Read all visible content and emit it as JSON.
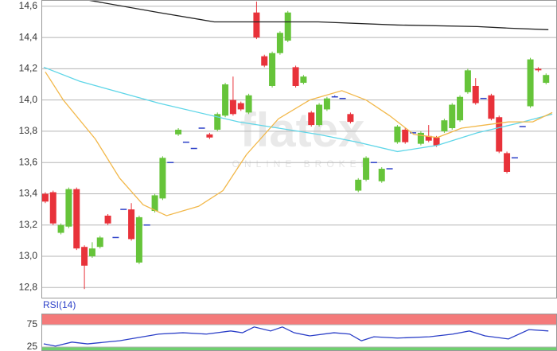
{
  "chart_data": [
    {
      "type": "candlestick",
      "watermark": "flatex",
      "watermark_sub": "ONLINE BROKER",
      "x": [
        0,
        1,
        2,
        3,
        4,
        5,
        6,
        7,
        8,
        9,
        10,
        11,
        12,
        13,
        14,
        15,
        16,
        17,
        18,
        19,
        20,
        21,
        22,
        23,
        24,
        25,
        26,
        27,
        28,
        29,
        30,
        31,
        32,
        33,
        34,
        35,
        36,
        37,
        38,
        39,
        40,
        41,
        42,
        43,
        44,
        45,
        46,
        47,
        48,
        49,
        50,
        51,
        52,
        53,
        54,
        55,
        56,
        57,
        58,
        59,
        60,
        61,
        62,
        63,
        64
      ],
      "open": [
        13.4,
        13.41,
        13.15,
        13.19,
        13.43,
        13.06,
        13.0,
        13.06,
        13.26,
        13.12,
        13.3,
        13.3,
        12.96,
        13.2,
        13.29,
        13.37,
        13.6,
        13.78,
        13.73,
        13.69,
        13.82,
        13.78,
        13.81,
        13.9,
        14.0,
        13.98,
        13.92,
        14.56,
        14.28,
        14.09,
        14.3,
        14.38,
        14.21,
        14.11,
        13.92,
        13.84,
        13.94,
        14.02,
        14.01,
        13.91,
        13.42,
        13.49,
        13.6,
        13.48,
        13.56,
        13.73,
        13.81,
        13.79,
        13.72,
        13.77,
        13.76,
        13.8,
        13.82,
        13.87,
        14.05,
        14.09,
        14.01,
        14.03,
        13.89,
        13.66,
        13.63,
        13.83,
        13.96,
        14.2,
        14.11
      ],
      "high": [
        13.41,
        13.42,
        13.21,
        13.44,
        13.44,
        13.07,
        13.09,
        13.13,
        13.27,
        13.12,
        13.3,
        13.34,
        13.26,
        13.2,
        13.4,
        13.64,
        13.6,
        13.82,
        13.73,
        13.69,
        13.82,
        13.79,
        13.92,
        14.11,
        14.15,
        13.99,
        14.04,
        14.63,
        14.29,
        14.31,
        14.44,
        14.57,
        14.22,
        14.16,
        13.93,
        13.98,
        14.02,
        14.03,
        14.01,
        13.92,
        13.5,
        13.64,
        13.6,
        13.57,
        13.56,
        13.84,
        13.82,
        13.79,
        13.8,
        13.84,
        13.77,
        13.88,
        13.98,
        14.03,
        14.2,
        14.14,
        14.01,
        14.04,
        13.9,
        13.67,
        13.63,
        13.83,
        14.27,
        14.21,
        14.17
      ],
      "low": [
        13.34,
        13.2,
        13.14,
        13.18,
        13.04,
        12.79,
        12.99,
        13.05,
        13.2,
        13.12,
        13.3,
        13.1,
        12.95,
        13.2,
        13.28,
        13.36,
        13.6,
        13.77,
        13.73,
        13.69,
        13.82,
        13.75,
        13.8,
        13.89,
        13.9,
        13.93,
        13.91,
        14.39,
        14.21,
        14.08,
        14.29,
        14.37,
        14.08,
        14.1,
        13.83,
        13.83,
        13.93,
        14.02,
        14.01,
        13.85,
        13.41,
        13.48,
        13.6,
        13.47,
        13.56,
        13.72,
        13.72,
        13.79,
        13.71,
        13.73,
        13.7,
        13.79,
        13.81,
        13.86,
        14.04,
        13.97,
        14.01,
        13.87,
        13.66,
        13.53,
        13.63,
        13.83,
        13.95,
        14.18,
        14.1
      ],
      "close": [
        13.35,
        13.21,
        13.2,
        13.43,
        13.05,
        12.94,
        13.05,
        13.12,
        13.21,
        13.12,
        13.3,
        13.11,
        13.25,
        13.2,
        13.39,
        13.63,
        13.6,
        13.81,
        13.73,
        13.69,
        13.82,
        13.76,
        13.91,
        14.1,
        13.91,
        13.94,
        14.03,
        14.4,
        14.22,
        14.3,
        14.43,
        14.56,
        14.09,
        14.15,
        13.84,
        13.97,
        14.01,
        14.02,
        14.01,
        13.86,
        13.49,
        13.63,
        13.6,
        13.56,
        13.56,
        13.83,
        13.73,
        13.79,
        13.79,
        13.74,
        13.71,
        13.87,
        13.97,
        14.02,
        14.19,
        13.98,
        14.01,
        13.88,
        13.67,
        13.54,
        13.63,
        13.83,
        14.26,
        14.19,
        14.16
      ],
      "up_color": "#66c43a",
      "down_color": "#e8323a",
      "flat_color": "#2b3fc8",
      "series": [
        {
          "color": "#222222",
          "x": [
            5.4,
            14.5,
            21.6,
            34.9,
            45,
            55.2,
            59.2,
            64.3
          ],
          "values": [
            14.64,
            14.56,
            14.5,
            14.5,
            14.48,
            14.47,
            14.46,
            14.45
          ]
        },
        {
          "color": "#5fd6e8",
          "x": [
            -0.2,
            4.4,
            14.5,
            24.7,
            34.9,
            39.9,
            45,
            50.1,
            55.2,
            60.3,
            64.8
          ],
          "values": [
            14.21,
            14.12,
            13.98,
            13.86,
            13.78,
            13.73,
            13.67,
            13.71,
            13.79,
            13.85,
            13.91
          ]
        },
        {
          "color": "#f2b84a",
          "x": [
            0,
            2.3,
            6.4,
            9.5,
            12.5,
            15.5,
            19.6,
            22.7,
            25.7,
            29.8,
            33.8,
            37.9,
            41,
            44,
            47.1,
            50.1,
            53.2,
            56.2,
            59.2,
            62.3,
            64.8
          ],
          "values": [
            14.18,
            14.0,
            13.75,
            13.5,
            13.33,
            13.26,
            13.32,
            13.42,
            13.65,
            13.88,
            14.0,
            14.06,
            14.0,
            13.9,
            13.78,
            13.76,
            13.82,
            13.84,
            13.86,
            13.86,
            13.92
          ]
        }
      ],
      "xlim": [
        -0.5,
        65.4
      ],
      "ylim": [
        12.73,
        14.64
      ],
      "yticks": [
        {
          "value": 14.6,
          "label": "14,6"
        },
        {
          "value": 14.4,
          "label": "14,4"
        },
        {
          "value": 14.2,
          "label": "14,2"
        },
        {
          "value": 14.0,
          "label": "14,0"
        },
        {
          "value": 13.8,
          "label": "13,8"
        },
        {
          "value": 13.6,
          "label": "13,6"
        },
        {
          "value": 13.4,
          "label": "13,4"
        },
        {
          "value": 13.2,
          "label": "13,2"
        },
        {
          "value": 13.0,
          "label": "13,0"
        },
        {
          "value": 12.8,
          "label": "12,8"
        }
      ],
      "grid": true
    },
    {
      "type": "line",
      "title": "RSI(14)",
      "title_color": "#2b3fc8",
      "series": [
        {
          "color": "#2b3fc8",
          "x": [
            -0.2,
            1.3,
            3.4,
            5.4,
            9.5,
            11.5,
            14.5,
            17.6,
            20.6,
            23.7,
            25.2,
            26.7,
            28.8,
            30.3,
            31.8,
            33.8,
            36.9,
            38.9,
            40.4,
            42,
            45,
            49.1,
            52.1,
            54.2,
            56.2,
            59.2,
            61.8,
            64.3
          ],
          "values": [
            32,
            27,
            36,
            32,
            39,
            45,
            54,
            57,
            54,
            61,
            57,
            70,
            61,
            70,
            57,
            50,
            57,
            54,
            39,
            48,
            45,
            48,
            54,
            61,
            50,
            43,
            64,
            61
          ]
        }
      ],
      "bands": [
        {
          "from": 75,
          "to": 100,
          "color": "#f47a7a"
        },
        {
          "from": 0,
          "to": 25,
          "color": "#6fd06f"
        }
      ],
      "xlim": [
        -0.5,
        65.4
      ],
      "ylim": [
        16,
        100
      ],
      "yticks": [
        75,
        25
      ],
      "grid": true
    }
  ]
}
